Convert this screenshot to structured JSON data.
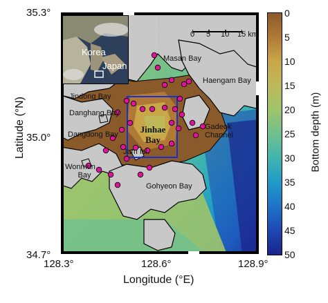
{
  "axes": {
    "x_title": "Longitude (°E)",
    "y_title": "Latitude (°N)",
    "x_ticks": [
      "128.3°",
      "128.6°",
      "128.9°"
    ],
    "y_ticks": [
      "35.3°",
      "35.0°",
      "34.7°"
    ]
  },
  "colorbar": {
    "title": "Bottom depth (m)",
    "ticks": [
      "0",
      "5",
      "10",
      "15",
      "20",
      "25",
      "30",
      "35",
      "40",
      "45",
      "50"
    ],
    "colors": [
      "#8B5A2B",
      "#B07A36",
      "#C9A748",
      "#BEB85A",
      "#9FC46A",
      "#6FC08F",
      "#40B5AE",
      "#1F9BC8",
      "#1E73C8",
      "#1F48B4",
      "#1A238A"
    ]
  },
  "scalebar": {
    "ticks": [
      "0",
      "5",
      "10",
      "15 km"
    ]
  },
  "inset": {
    "country_label_1": "Korea",
    "country_label_2": "Japan"
  },
  "places": {
    "masan_bay": "Masan Bay",
    "haengam_bay": "Haengam Bay",
    "jindong_bay": "Jindong Bay",
    "danghang_bay": "Danghang Bay",
    "dangdong_bay": "Dangdong Bay",
    "gadeok_channel_1": "Gadeok",
    "gadeok_channel_2": "Channel",
    "jinhae_bay_1": "Jinhae",
    "jinhae_bay_2": "Bay",
    "jam_isl": "Jam Isl.",
    "wonmun_bay_1": "Wonmun",
    "wonmun_bay_2": "Bay",
    "gohyeon_bay": "Gohyeon Bay"
  },
  "colors": {
    "land": "#c8c8c8",
    "coast": "#000000",
    "shallow": "#8B5A2B",
    "station": "#e0119a",
    "study_box": "#1a2fd0"
  }
}
